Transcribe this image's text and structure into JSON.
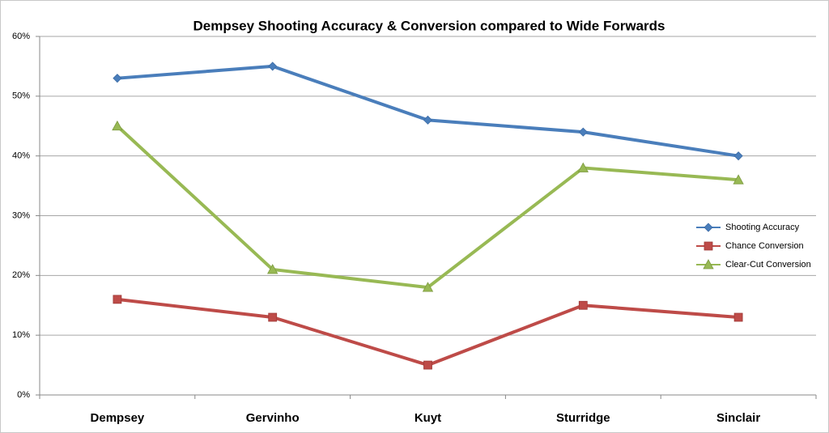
{
  "chart_data": {
    "type": "line",
    "title": "Dempsey Shooting Accuracy & Conversion compared to Wide Forwards",
    "categories": [
      "Dempsey",
      "Gervinho",
      "Kuyt",
      "Sturridge",
      "Sinclair"
    ],
    "series": [
      {
        "name": "Shooting Accuracy",
        "color": "#4a7ebb",
        "marker": "diamond",
        "values": [
          53,
          55,
          46,
          44,
          40
        ]
      },
      {
        "name": "Chance Conversion",
        "color": "#be4b48",
        "marker": "square",
        "values": [
          16,
          13,
          5,
          15,
          13
        ]
      },
      {
        "name": "Clear-Cut Conversion",
        "color": "#98b954",
        "marker": "triangle",
        "values": [
          45,
          21,
          18,
          38,
          36
        ]
      }
    ],
    "ylim": [
      0,
      60
    ],
    "yticks": [
      {
        "value": 0,
        "label": "0%"
      },
      {
        "value": 10,
        "label": "10%"
      },
      {
        "value": 20,
        "label": "20%"
      },
      {
        "value": 30,
        "label": "30%"
      },
      {
        "value": 40,
        "label": "40%"
      },
      {
        "value": 50,
        "label": "50%"
      },
      {
        "value": 60,
        "label": "60%"
      }
    ],
    "grid": true,
    "legend": "right"
  }
}
